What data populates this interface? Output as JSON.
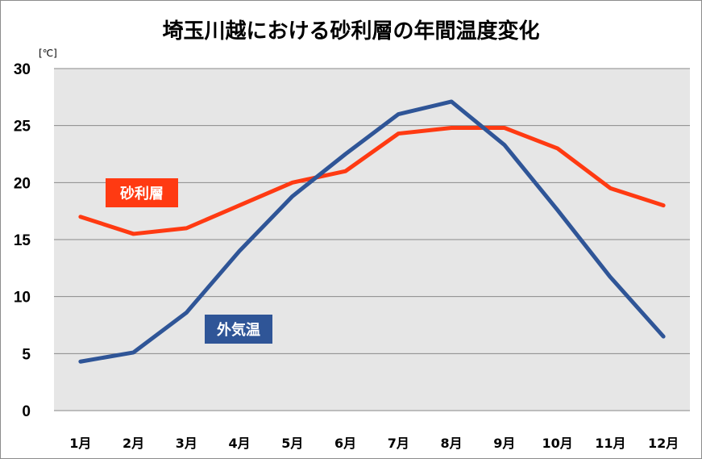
{
  "chart_data": {
    "type": "line",
    "title": "埼玉川越における砂利層の年間温度変化",
    "ylabel": "[℃]",
    "xlabel": "",
    "categories": [
      "1月",
      "2月",
      "3月",
      "4月",
      "5月",
      "6月",
      "7月",
      "8月",
      "9月",
      "10月",
      "11月",
      "12月"
    ],
    "ylim": [
      0,
      30
    ],
    "yticks": [
      0,
      5,
      10,
      15,
      20,
      25,
      30
    ],
    "grid": true,
    "series": [
      {
        "name": "砂利層",
        "color": "#ff3a12",
        "values": [
          17.0,
          15.5,
          16.0,
          18.0,
          20.0,
          21.0,
          24.3,
          24.8,
          24.8,
          23.0,
          19.5,
          18.0
        ]
      },
      {
        "name": "外気温",
        "color": "#2f5597",
        "values": [
          4.3,
          5.1,
          8.6,
          14.0,
          18.8,
          22.5,
          26.0,
          27.1,
          23.3,
          17.6,
          11.7,
          6.5
        ]
      }
    ]
  }
}
